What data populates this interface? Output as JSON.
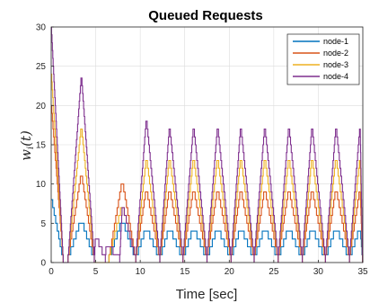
{
  "chart_data": {
    "type": "line",
    "title": "Queued Requests",
    "xlabel": "Time [sec]",
    "ylabel": "w_i(t)",
    "xlim": [
      0,
      35
    ],
    "ylim": [
      0,
      30
    ],
    "xticks": [
      0,
      5,
      10,
      15,
      20,
      25,
      30,
      35
    ],
    "yticks": [
      0,
      5,
      10,
      15,
      20,
      25,
      30
    ],
    "xtick_labels": [
      "0",
      "5",
      "10",
      "15",
      "20",
      "25",
      "30",
      "35"
    ],
    "ytick_labels": [
      "0",
      "5",
      "10",
      "15",
      "20",
      "25",
      "30"
    ],
    "grid": true,
    "legend_position": "top-right",
    "series": [
      {
        "name": "node-1",
        "color": "#0072BD",
        "x": [
          0,
          1.5,
          3.4,
          5.0,
          6.2,
          8.0,
          10.7,
          13.3,
          16.0,
          18.7,
          21.3,
          24.0,
          26.7,
          29.3,
          32.0,
          34.7
        ],
        "y": [
          8,
          0,
          5,
          0,
          0,
          5,
          4,
          4,
          4,
          4,
          4,
          4,
          4,
          4,
          4,
          4
        ]
      },
      {
        "name": "node-2",
        "color": "#D95319",
        "x": [
          0,
          1.5,
          3.4,
          5.0,
          6.2,
          8.0,
          10.7,
          13.3,
          16.0,
          18.7,
          21.3,
          24.0,
          26.7,
          29.3,
          32.0,
          34.7
        ],
        "y": [
          20,
          0,
          11,
          0,
          0,
          10,
          9,
          9,
          9,
          9,
          9,
          9,
          9,
          9,
          9,
          9
        ]
      },
      {
        "name": "node-3",
        "color": "#EDB120",
        "x": [
          0,
          1.5,
          3.4,
          5.0,
          6.2,
          8.0,
          10.7,
          13.3,
          16.0,
          18.7,
          21.3,
          24.0,
          26.7,
          29.3,
          32.0,
          34.7
        ],
        "y": [
          24,
          0,
          17,
          0,
          0,
          7,
          13,
          13,
          13,
          13,
          13,
          13,
          13,
          13,
          13,
          13
        ]
      },
      {
        "name": "node-4",
        "color": "#7E2F8E",
        "x": [
          0,
          1.5,
          3.4,
          5.0,
          6.2,
          8.0,
          10.7,
          13.3,
          16.0,
          18.7,
          21.3,
          24.0,
          26.7,
          29.3,
          32.0,
          34.7
        ],
        "y": [
          30,
          0,
          23.5,
          3,
          2,
          7,
          18,
          17,
          17,
          17,
          17,
          17,
          17,
          17,
          17,
          17
        ]
      }
    ]
  }
}
